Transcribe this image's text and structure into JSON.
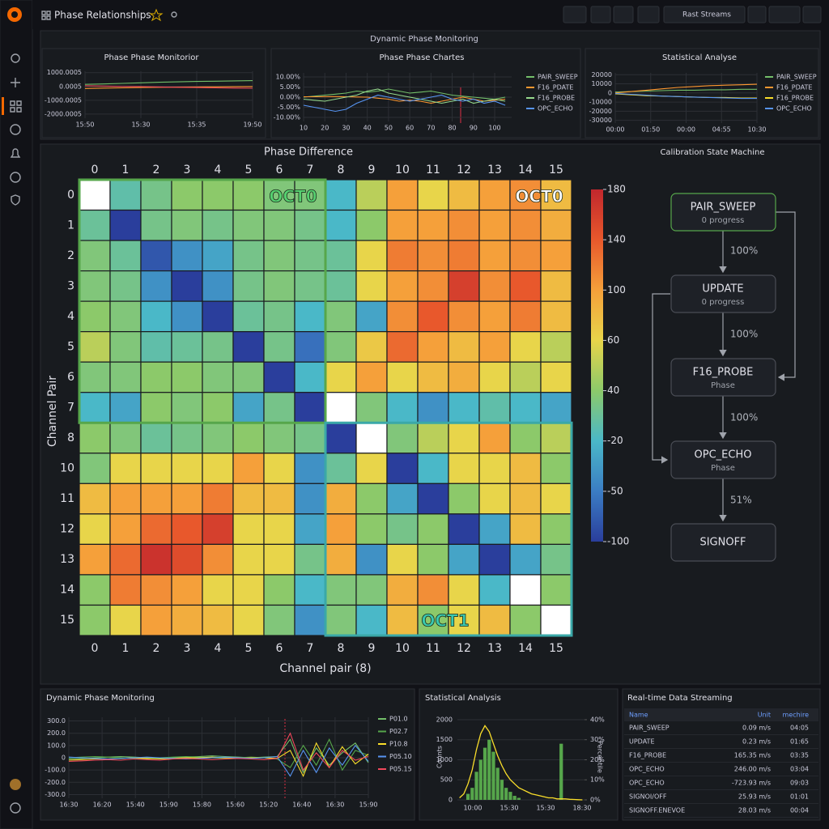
{
  "topbar": {
    "title": "Phase Relationships",
    "time_button": "Rast Streams"
  },
  "row_title": "Dynamic Phase Monitoring",
  "panels": [
    {
      "type": "line",
      "title": "Phase Phase Monitorior",
      "ylim": [
        -2300,
        1100
      ],
      "yticks": [
        1000.0005,
        0.0005,
        -1000.0005,
        -2000.0005
      ],
      "x_labels": [
        "15:50",
        "15:30",
        "15:35",
        "19:50"
      ],
      "series": [
        {
          "color": "#73bf69",
          "values": [
            150,
            180,
            220,
            260,
            300,
            330,
            360,
            380,
            400,
            420
          ]
        },
        {
          "color": "#ff9830",
          "values": [
            -150,
            -120,
            -100,
            -80,
            -60,
            -50,
            -40,
            -30,
            -20,
            -10
          ]
        },
        {
          "color": "#f2495c",
          "values": [
            50,
            30,
            0,
            -20,
            -40,
            -60,
            -80,
            -100,
            -120,
            -130
          ]
        }
      ]
    },
    {
      "type": "line",
      "title": "Phase Phase Chartes",
      "ylim": [
        -12,
        12
      ],
      "yticks": [
        {
          "value": 10,
          "label": "10.00%"
        },
        {
          "value": 5,
          "label": "5.00%"
        },
        {
          "value": 0,
          "label": "0.00%"
        },
        {
          "value": -5,
          "label": "-5.00%"
        },
        {
          "value": -10,
          "label": "-10.00%"
        }
      ],
      "xlim": [
        10,
        108
      ],
      "xticks": [
        10,
        20,
        30,
        40,
        50,
        60,
        70,
        80,
        90,
        100
      ],
      "x": [
        10,
        15,
        20,
        25,
        30,
        35,
        40,
        45,
        50,
        55,
        60,
        65,
        70,
        75,
        80,
        85,
        90,
        95,
        100,
        105
      ],
      "series": [
        {
          "name": "PAIR_SWEEP",
          "color": "#73bf69",
          "values": [
            0,
            0.5,
            1,
            1.5,
            2,
            3,
            2.5,
            3,
            4,
            3,
            2,
            2.5,
            3,
            2,
            1,
            0.5,
            0,
            -0.5,
            -1,
            0
          ]
        },
        {
          "name": "F16_PDATE",
          "color": "#ff9830",
          "values": [
            0.2,
            0.2,
            0.3,
            0.3,
            0.2,
            0.1,
            0,
            -0.5,
            -1,
            -2,
            -1.5,
            -2,
            -3,
            -2,
            -1,
            0,
            -1,
            -2,
            -1.5,
            -1
          ]
        },
        {
          "name": "F16_PROBE",
          "color": "#96d98d",
          "values": [
            -1,
            -1.5,
            -2,
            -1,
            0,
            1,
            3,
            4,
            2,
            1,
            0,
            -1,
            -2,
            -3,
            -2,
            -1,
            -3,
            -2,
            -1,
            -2
          ]
        },
        {
          "name": "OPC_ECHO",
          "color": "#5794f2",
          "values": [
            -4,
            -5,
            -6,
            -7,
            -6,
            -3,
            -1,
            1,
            0,
            -1,
            -2,
            -1,
            0,
            1,
            -1,
            -2,
            -1,
            -3,
            -2,
            -4
          ]
        }
      ]
    },
    {
      "type": "line",
      "title": "Statistical Analyse",
      "ylim": [
        -33000,
        22000
      ],
      "yticks": [
        20000,
        10000,
        0,
        -10000,
        -20000,
        -30000
      ],
      "x_labels": [
        "00:00",
        "01:50",
        "00:00",
        "04:55",
        "10:30"
      ],
      "series": [
        {
          "name": "PAIR_SWEEP",
          "color": "#73bf69",
          "values": [
            1000,
            1500,
            2000,
            2500,
            3000,
            3000,
            3500,
            3500,
            4000,
            4000
          ]
        },
        {
          "name": "F16_PDATE",
          "color": "#ff9830",
          "values": [
            0,
            1500,
            3000,
            4500,
            6000,
            7000,
            8000,
            8500,
            9000,
            9500
          ]
        },
        {
          "name": "F16_PROBE",
          "color": "#fade2a",
          "values": [
            -1000,
            -2000,
            -3000,
            -3500,
            -4000,
            -4500,
            -5000,
            -5000,
            -5500,
            -5500
          ]
        },
        {
          "name": "OPC_ECHO",
          "color": "#5794f2",
          "values": [
            -500,
            -1500,
            -2500,
            -3500,
            -4000,
            -4500,
            -5000,
            -5500,
            -6000,
            -6000
          ]
        }
      ]
    }
  ],
  "heatmap": {
    "type": "heatmap",
    "title": "Phase Difference",
    "x_label": "Channel pair (8)",
    "y_label": "Channel Pair",
    "x_categories": [
      0,
      1,
      2,
      3,
      4,
      5,
      6,
      7,
      8,
      9,
      10,
      11,
      12,
      13,
      14,
      15
    ],
    "y_categories": [
      0,
      1,
      2,
      3,
      4,
      5,
      6,
      7,
      8,
      10,
      11,
      12,
      13,
      14,
      15
    ],
    "values": [
      [
        null,
        0,
        20,
        40,
        40,
        40,
        30,
        30,
        -20,
        50,
        100,
        60,
        80,
        100,
        110,
        80
      ],
      [
        10,
        -100,
        20,
        30,
        20,
        30,
        30,
        20,
        -20,
        40,
        100,
        100,
        110,
        100,
        110,
        90
      ],
      [
        30,
        10,
        -80,
        -40,
        -30,
        20,
        30,
        20,
        10,
        60,
        120,
        110,
        120,
        100,
        110,
        100
      ],
      [
        30,
        20,
        -40,
        -100,
        -40,
        20,
        30,
        20,
        10,
        60,
        100,
        110,
        160,
        110,
        140,
        80
      ],
      [
        40,
        30,
        -20,
        -40,
        -100,
        10,
        20,
        -20,
        30,
        -30,
        110,
        140,
        110,
        100,
        120,
        80
      ],
      [
        50,
        30,
        0,
        10,
        20,
        -100,
        20,
        -60,
        30,
        70,
        130,
        100,
        80,
        100,
        60,
        50
      ],
      [
        30,
        30,
        40,
        40,
        30,
        30,
        -100,
        -20,
        60,
        100,
        60,
        80,
        90,
        60,
        50,
        60
      ],
      [
        -20,
        -30,
        40,
        30,
        40,
        -30,
        20,
        -100,
        null,
        30,
        -20,
        -40,
        -20,
        0,
        -20,
        -30
      ],
      [
        40,
        30,
        10,
        20,
        30,
        40,
        30,
        20,
        -100,
        null,
        30,
        50,
        60,
        100,
        40,
        50
      ],
      [
        30,
        60,
        60,
        60,
        60,
        100,
        60,
        -40,
        10,
        60,
        -100,
        -20,
        60,
        60,
        80,
        40
      ],
      [
        80,
        100,
        100,
        100,
        120,
        80,
        80,
        -40,
        90,
        40,
        -30,
        -100,
        40,
        60,
        80,
        60
      ],
      [
        60,
        100,
        130,
        140,
        160,
        60,
        60,
        -30,
        100,
        40,
        20,
        40,
        -100,
        -30,
        80,
        40
      ],
      [
        100,
        130,
        170,
        150,
        110,
        60,
        60,
        20,
        90,
        -40,
        60,
        40,
        -30,
        -100,
        -30,
        20
      ],
      [
        40,
        120,
        110,
        100,
        60,
        60,
        40,
        -20,
        30,
        30,
        90,
        110,
        60,
        -20,
        null,
        40
      ],
      [
        40,
        60,
        100,
        90,
        80,
        60,
        30,
        -40,
        30,
        -20,
        80,
        40,
        60,
        80,
        40,
        null
      ]
    ],
    "colorbar_ticks": [
      180,
      140,
      100,
      60,
      40,
      -20,
      -50,
      -100
    ],
    "colorbar_colors": [
      "#c1272d",
      "#e8582c",
      "#f5a03a",
      "#e8d54a",
      "#8cc96a",
      "#4ab8c8",
      "#3b7dc4",
      "#2a3e9c"
    ],
    "annotations": [
      "OCT0",
      "OCT0",
      "OCT1"
    ]
  },
  "state_machine": {
    "title": "Calibration State Machine",
    "nodes": [
      {
        "label": "PAIR_SWEEP",
        "sublabel": "0 progress"
      },
      {
        "label": "UPDATE",
        "sublabel": "0 progress"
      },
      {
        "label": "F16_PROBE",
        "sublabel": "Phase"
      },
      {
        "label": "OPC_ECHO",
        "sublabel": "Phase"
      },
      {
        "label": "SIGNOFF"
      }
    ],
    "edges": [
      "100%",
      "100%",
      "100%",
      "51%"
    ]
  },
  "bottom_line": {
    "type": "line",
    "title": "Dynamic Phase Monitoring",
    "ylim": [
      -330,
      330
    ],
    "yticks": [
      {
        "value": 300,
        "label": "300.0"
      },
      {
        "value": 200,
        "label": "200.0"
      },
      {
        "value": 100,
        "label": "100.0"
      },
      0,
      {
        "value": -100,
        "label": "-100.0"
      },
      {
        "value": -200,
        "label": "-200.0"
      },
      {
        "value": -300,
        "label": "-300.0"
      }
    ],
    "x_labels": [
      "16:30",
      "16:20",
      "15:40",
      "15:90",
      "15:80",
      "15:60",
      "15:20",
      "16:40",
      "16:30",
      "15:90"
    ],
    "series": [
      {
        "name": "P01.0",
        "color": "#73bf69",
        "values": [
          -10,
          -5,
          0,
          5,
          10,
          5,
          0,
          -5,
          0,
          5,
          10,
          15,
          10,
          5,
          0,
          5,
          10,
          150,
          -120,
          80,
          -60,
          40,
          120,
          -40
        ]
      },
      {
        "name": "P02.7",
        "color": "#56a64b",
        "values": [
          0,
          5,
          10,
          5,
          0,
          -5,
          -10,
          0,
          5,
          10,
          5,
          0,
          -5,
          0,
          5,
          0,
          -10,
          -80,
          100,
          -60,
          150,
          -100,
          60,
          20
        ]
      },
      {
        "name": "P10.8",
        "color": "#fade2a",
        "values": [
          -20,
          -15,
          -10,
          -10,
          -5,
          0,
          -5,
          -10,
          -5,
          0,
          0,
          5,
          0,
          -5,
          0,
          0,
          -5,
          60,
          -150,
          120,
          -80,
          90,
          -50,
          30
        ]
      },
      {
        "name": "P05.10",
        "color": "#5794f2",
        "values": [
          5,
          0,
          -5,
          -10,
          -5,
          0,
          5,
          0,
          -5,
          -10,
          -5,
          0,
          5,
          0,
          -5,
          0,
          10,
          -150,
          60,
          -120,
          80,
          -60,
          100,
          -30
        ]
      },
      {
        "name": "P05.15",
        "color": "#f2495c",
        "values": [
          -30,
          -25,
          -20,
          -15,
          -20,
          -10,
          -15,
          -20,
          -10,
          -5,
          -10,
          -15,
          -10,
          -5,
          -10,
          -15,
          -5,
          200,
          -100,
          40,
          -80,
          60,
          -20,
          10
        ]
      }
    ]
  },
  "histogram": {
    "type": "bar_line",
    "title": "Statistical Analysis",
    "y_label": "Counts",
    "y2_label": "Percentile",
    "ylim": [
      0,
      2100
    ],
    "yticks": [
      0,
      500,
      1000,
      1500,
      2000
    ],
    "y2lim": [
      0,
      42
    ],
    "y2ticks": [
      {
        "value": 0,
        "label": "0%"
      },
      {
        "value": 10,
        "label": "10%"
      },
      {
        "value": 20,
        "label": "20%"
      },
      {
        "value": 30,
        "label": "30%"
      },
      {
        "value": 40,
        "label": "40%"
      }
    ],
    "x_labels": [
      "10:00",
      "15:30",
      "15:30",
      "18:30"
    ],
    "series": [
      {
        "type": "bar",
        "color": "#56a64b",
        "values": [
          0,
          0,
          150,
          300,
          700,
          1000,
          1300,
          1500,
          1200,
          800,
          500,
          300,
          200,
          100,
          50,
          0,
          0,
          0,
          0,
          0,
          0,
          0,
          0,
          0,
          1400,
          0,
          0,
          0,
          0,
          0
        ]
      },
      {
        "type": "line",
        "axis": "y2",
        "color": "#fade2a",
        "values": [
          1,
          3,
          8,
          15,
          25,
          33,
          37,
          34,
          28,
          22,
          17,
          13,
          10,
          8,
          6,
          5,
          4,
          3,
          2.5,
          2,
          1.5,
          1,
          1,
          0.5,
          0.5,
          0.5,
          0.3,
          0.2,
          0.1,
          0
        ]
      }
    ]
  },
  "table": {
    "title": "Real-time Data Streaming",
    "columns": [
      "Name",
      "Unit",
      "mechire"
    ],
    "rows": [
      [
        "PAIR_SWEEP",
        "0.09 m/s",
        "04:05"
      ],
      [
        "UPDATE",
        "0.23 m/s",
        "01:65"
      ],
      [
        "F16_PROBE",
        "165.35 m/s",
        "03:35"
      ],
      [
        "OPC_ECHO",
        "246.00 m/s",
        "03:04"
      ],
      [
        "OPC_ECHO",
        "-723.93 m/s",
        "09:03"
      ],
      [
        "SIGNOI/OFF",
        "25.93 m/s",
        "01:01"
      ],
      [
        "SIGNOFF.ENEVOE",
        "28.03 m/s",
        "00:04"
      ]
    ]
  }
}
